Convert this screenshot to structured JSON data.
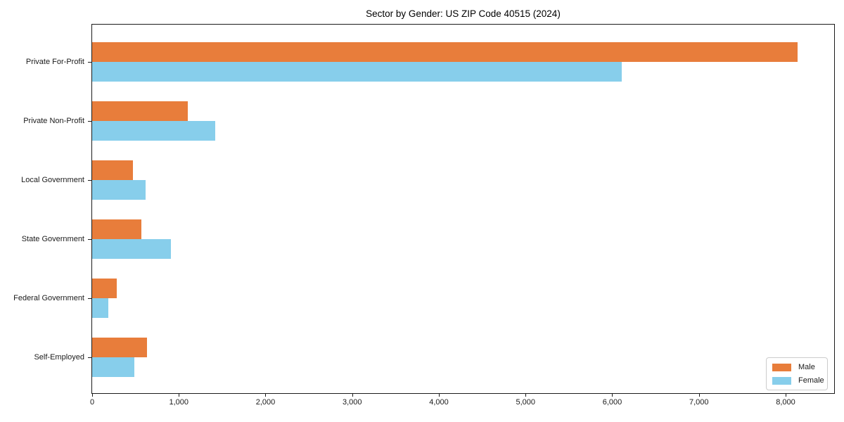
{
  "chart_data": {
    "type": "bar",
    "orientation": "horizontal",
    "title": "Sector by Gender: US ZIP Code 40515 (2024)",
    "categories": [
      "Private For-Profit",
      "Private Non-Profit",
      "Local Government",
      "State Government",
      "Federal Government",
      "Self-Employed"
    ],
    "series": [
      {
        "name": "Male",
        "color": "#e87d3b",
        "values": [
          8140,
          1100,
          470,
          570,
          285,
          635
        ]
      },
      {
        "name": "Female",
        "color": "#87ceeb",
        "values": [
          6110,
          1420,
          620,
          910,
          190,
          490
        ]
      }
    ],
    "xlabel": "",
    "ylabel": "",
    "xlim": [
      0,
      8560
    ],
    "xticks": [
      0,
      1000,
      2000,
      3000,
      4000,
      5000,
      6000,
      7000,
      8000
    ],
    "xtick_labels": [
      "0",
      "1,000",
      "2,000",
      "3,000",
      "4,000",
      "5,000",
      "6,000",
      "7,000",
      "8,000"
    ],
    "grid": false,
    "legend_position": "lower right",
    "axis_color": "#1a1a1a",
    "background_color": "#ffffff"
  }
}
